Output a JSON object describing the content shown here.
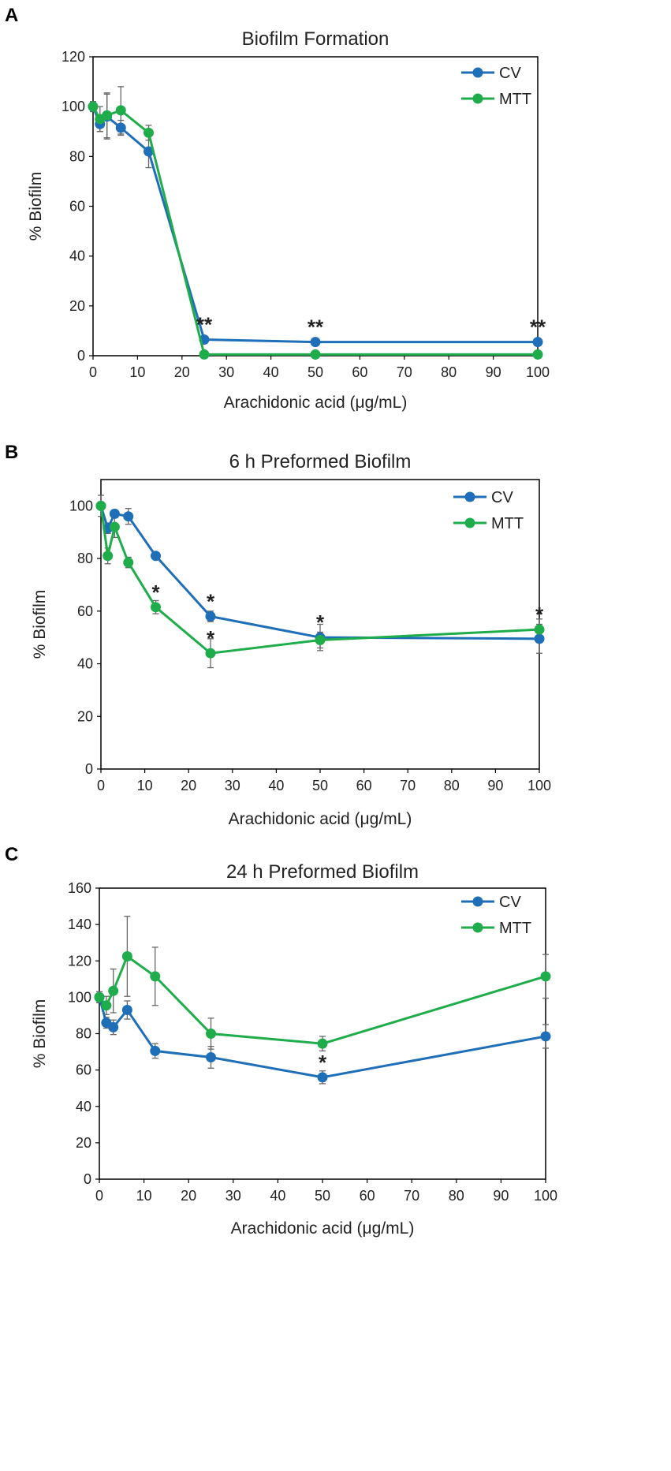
{
  "colors": {
    "cv": "#1f6fb8",
    "mtt": "#1fad4b",
    "error": "#666666",
    "axis": "#000000"
  },
  "chart_data": [
    {
      "type": "line",
      "panel": "A",
      "title": "Biofilm Formation",
      "xlabel": "Arachidonic acid (μg/mL)",
      "ylabel": "% Biofilm",
      "xlim": [
        0,
        100
      ],
      "ylim": [
        0,
        120
      ],
      "xticks": [
        0,
        10,
        20,
        30,
        40,
        50,
        60,
        70,
        80,
        90,
        100
      ],
      "yticks": [
        0,
        20,
        40,
        60,
        80,
        100,
        120
      ],
      "legend": {
        "position": "top-right",
        "entries": [
          "CV",
          "MTT"
        ]
      },
      "series": [
        {
          "name": "CV",
          "color": "#1f6fb8",
          "x": [
            0,
            1.56,
            3.13,
            6.25,
            12.5,
            25,
            50,
            100
          ],
          "y": [
            100,
            93,
            96,
            91.5,
            82,
            6.5,
            5.5,
            5.5
          ],
          "err": [
            2,
            3,
            9,
            3,
            6.5,
            0.5,
            0.5,
            0.5
          ]
        },
        {
          "name": "MTT",
          "color": "#1fad4b",
          "x": [
            0,
            1.56,
            3.13,
            6.25,
            12.5,
            25,
            50,
            100
          ],
          "y": [
            100,
            95,
            96.5,
            98.5,
            89.5,
            0.5,
            0.5,
            0.5
          ],
          "err": [
            2,
            5,
            9,
            9.5,
            3,
            0.3,
            0.3,
            0.3
          ]
        }
      ],
      "annotations": [
        {
          "text": "**",
          "x": 25,
          "y": 6.5
        },
        {
          "text": "**",
          "x": 50,
          "y": 5.5
        },
        {
          "text": "**",
          "x": 100,
          "y": 5.5
        }
      ]
    },
    {
      "type": "line",
      "panel": "B",
      "title": "6 h Preformed Biofilm",
      "xlabel": "Arachidonic acid (μg/mL)",
      "ylabel": "% Biofilm",
      "xlim": [
        0,
        100
      ],
      "ylim": [
        0,
        110
      ],
      "xticks": [
        0,
        10,
        20,
        30,
        40,
        50,
        60,
        70,
        80,
        90,
        100
      ],
      "yticks": [
        0,
        20,
        40,
        60,
        80,
        100
      ],
      "legend": {
        "position": "top-right",
        "entries": [
          "CV",
          "MTT"
        ]
      },
      "series": [
        {
          "name": "CV",
          "color": "#1f6fb8",
          "x": [
            0,
            1.56,
            3.13,
            6.25,
            12.5,
            25,
            50,
            100
          ],
          "y": [
            100,
            91.5,
            97,
            96,
            81,
            58,
            50,
            49.5
          ],
          "err": [
            4,
            2,
            1.5,
            3,
            1,
            2,
            5,
            5.5
          ]
        },
        {
          "name": "MTT",
          "color": "#1fad4b",
          "x": [
            0,
            1.56,
            3.13,
            6.25,
            12.5,
            25,
            50,
            100
          ],
          "y": [
            100,
            81,
            92,
            78.5,
            61.5,
            44,
            49,
            53
          ],
          "err": [
            1,
            3,
            4,
            2,
            2.5,
            5.5,
            3,
            4
          ]
        }
      ],
      "annotations": [
        {
          "text": "*",
          "x": 12.5,
          "y": 61.5
        },
        {
          "text": "*",
          "x": 25,
          "y": 58
        },
        {
          "text": "*",
          "x": 25,
          "y": 44
        },
        {
          "text": "*",
          "x": 50,
          "y": 50
        },
        {
          "text": "*",
          "x": 100,
          "y": 53
        }
      ]
    },
    {
      "type": "line",
      "panel": "C",
      "title": "24 h Preformed Biofilm",
      "xlabel": "Arachidonic acid (μg/mL)",
      "ylabel": "% Biofilm",
      "xlim": [
        0,
        100
      ],
      "ylim": [
        0,
        160
      ],
      "xticks": [
        0,
        10,
        20,
        30,
        40,
        50,
        60,
        70,
        80,
        90,
        100
      ],
      "yticks": [
        0,
        20,
        40,
        60,
        80,
        100,
        120,
        140,
        160
      ],
      "legend": {
        "position": "top-right",
        "entries": [
          "CV",
          "MTT"
        ]
      },
      "series": [
        {
          "name": "CV",
          "color": "#1f6fb8",
          "x": [
            0,
            1.56,
            3.13,
            6.25,
            12.5,
            25,
            50,
            100
          ],
          "y": [
            100,
            86,
            83.5,
            93,
            70.5,
            67,
            56,
            78.5
          ],
          "err": [
            3,
            3,
            4,
            5,
            4,
            6,
            3.5,
            6.5
          ]
        },
        {
          "name": "MTT",
          "color": "#1fad4b",
          "x": [
            0,
            1.56,
            3.13,
            6.25,
            12.5,
            25,
            50,
            100
          ],
          "y": [
            100,
            95.5,
            103.5,
            122.5,
            111.5,
            80,
            74.5,
            111.5
          ],
          "err": [
            3,
            5,
            12,
            22,
            16,
            8.5,
            4,
            12
          ]
        }
      ],
      "annotations": [
        {
          "text": "*",
          "x": 50,
          "y": 56
        }
      ]
    }
  ]
}
